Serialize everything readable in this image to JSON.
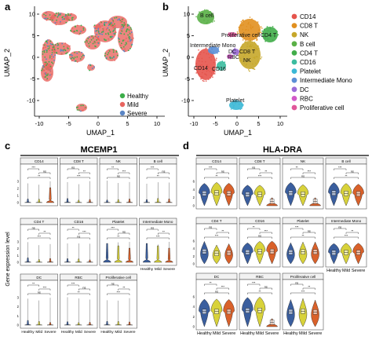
{
  "panels": {
    "a": {
      "letter": "a",
      "xlabel": "UMAP_1",
      "ylabel": "UMAP_2",
      "xticks": [
        "-10",
        "-5",
        "0",
        "5",
        "10"
      ],
      "yticks": [
        "10",
        "5",
        "0",
        "-5",
        "-10"
      ],
      "legend": [
        "Healthy",
        "Mild",
        "Severe"
      ]
    },
    "b": {
      "letter": "b",
      "xlabel": "UMAP_1",
      "ylabel": "UMAP_2",
      "xticks": [
        "-10",
        "-5",
        "0",
        "5",
        "10"
      ],
      "yticks": [
        "10",
        "5",
        "0",
        "-5",
        "-10"
      ],
      "cluster_labels": [
        "B cell",
        "Proliferative cell",
        "CD4 T",
        "Intermediate Mono",
        "RBC",
        "NK",
        "CD8 T",
        "DC",
        "CD14",
        "CD16",
        "Platelet"
      ],
      "legend": [
        "CD14",
        "CD8 T",
        "NK",
        "B cell",
        "CD4 T",
        "CD16",
        "Platelet",
        "Intermediate Mono",
        "DC",
        "RBC",
        "Proliferative cell"
      ]
    },
    "c": {
      "letter": "c",
      "title": "MCEMP1",
      "cells": [
        "CD14",
        "CD8 T",
        "NK",
        "B cell",
        "CD4 T",
        "CD16",
        "Platelet",
        "Intermediate Mono",
        "DC",
        "RBC",
        "Proliferative cell"
      ],
      "ylabel": "Gene expression level"
    },
    "d": {
      "letter": "d",
      "title": "HLA-DRA",
      "cells": [
        "CD14",
        "CD8 T",
        "NK",
        "B cell",
        "CD4 T",
        "CD16",
        "Platelet",
        "Intermediate Mono",
        "DC",
        "RBC",
        "Proliferative cell"
      ]
    },
    "groups": [
      "Healthy",
      "Mild",
      "Severe"
    ],
    "sig": [
      "***",
      "ns",
      "**",
      "*"
    ]
  },
  "colors": {
    "condition": {
      "Healthy": "#3cae49",
      "Mild": "#e8655f",
      "Severe": "#5b86c5"
    },
    "cluster": {
      "CD14": "#e5544c",
      "CD8 T": "#e1901f",
      "NK": "#c6a72a",
      "B cell": "#5ab047",
      "CD4 T": "#41ad4a",
      "CD16": "#3cbca0",
      "Platelet": "#3ab8d6",
      "Intermediate Mono": "#5b8fd6",
      "DC": "#9b6bd8",
      "RBC": "#d159c8",
      "Proliferative cell": "#e0579a"
    },
    "violin": {
      "Healthy": "#3a5e9e",
      "Mild": "#d8d23a",
      "Severe": "#d9612a"
    }
  },
  "chart_data": [
    {
      "type": "scatter",
      "panel": "a",
      "title": "",
      "xlabel": "UMAP_1",
      "ylabel": "UMAP_2",
      "xlim": [
        -12,
        13
      ],
      "ylim": [
        -12,
        14
      ],
      "series": [
        {
          "name": "Healthy"
        },
        {
          "name": "Mild"
        },
        {
          "name": "Severe"
        }
      ]
    },
    {
      "type": "scatter",
      "panel": "b",
      "title": "",
      "xlabel": "UMAP_1",
      "ylabel": "UMAP_2",
      "xlim": [
        -12,
        13
      ],
      "ylim": [
        -12,
        14
      ],
      "series": [
        {
          "name": "CD14"
        },
        {
          "name": "CD8 T"
        },
        {
          "name": "NK"
        },
        {
          "name": "B cell"
        },
        {
          "name": "CD4 T"
        },
        {
          "name": "CD16"
        },
        {
          "name": "Platelet"
        },
        {
          "name": "Intermediate Mono"
        },
        {
          "name": "DC"
        },
        {
          "name": "RBC"
        },
        {
          "name": "Proliferative cell"
        }
      ]
    },
    {
      "type": "violin",
      "panel": "c",
      "title": "MCEMP1",
      "ylabel": "Gene expression level",
      "categories": [
        "Healthy",
        "Mild",
        "Severe"
      ],
      "facets": [
        "CD14",
        "CD8 T",
        "NK",
        "B cell",
        "CD4 T",
        "CD16",
        "Platelet",
        "Intermediate Mono",
        "DC",
        "RBC",
        "Proliferative cell"
      ]
    },
    {
      "type": "violin",
      "panel": "d",
      "title": "HLA-DRA",
      "categories": [
        "Healthy",
        "Mild",
        "Severe"
      ],
      "facets": [
        "CD14",
        "CD8 T",
        "NK",
        "B cell",
        "CD4 T",
        "CD16",
        "Platelet",
        "Intermediate Mono",
        "DC",
        "RBC",
        "Proliferative cell"
      ]
    }
  ]
}
